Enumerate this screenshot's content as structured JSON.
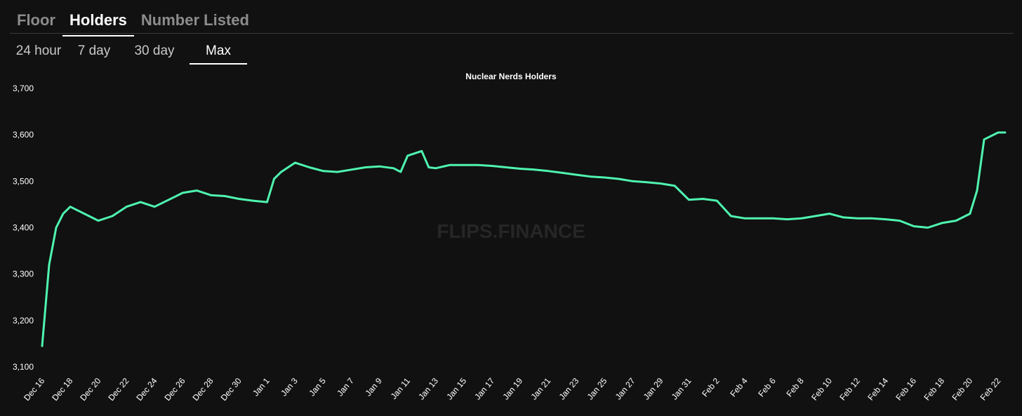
{
  "tabs": [
    {
      "label": "Floor",
      "active": false
    },
    {
      "label": "Holders",
      "active": true
    },
    {
      "label": "Number Listed",
      "active": false
    }
  ],
  "ranges": [
    {
      "label": "24 hour",
      "active": false
    },
    {
      "label": "7 day",
      "active": false
    },
    {
      "label": "30 day",
      "active": false
    },
    {
      "label": "Max",
      "active": true
    }
  ],
  "watermark": "FLIPS.FINANCE",
  "colors": {
    "background": "#111111",
    "line": "#4ff5b0",
    "text": "#ffffff",
    "watermark": "#262626"
  },
  "chart_data": {
    "type": "line",
    "title": "Nuclear Nerds Holders",
    "xlabel": "",
    "ylabel": "",
    "ylim": [
      3100,
      3700
    ],
    "grid": false,
    "legend": "none",
    "yticks": [
      3100,
      3200,
      3300,
      3400,
      3500,
      3600,
      3700
    ],
    "ytick_labels": [
      "3,100",
      "3,200",
      "3,300",
      "3,400",
      "3,500",
      "3,600",
      "3,700"
    ],
    "xticks": [
      "Dec 16",
      "Dec 18",
      "Dec 20",
      "Dec 22",
      "Dec 24",
      "Dec 26",
      "Dec 28",
      "Dec 30",
      "Jan 1",
      "Jan 3",
      "Jan 5",
      "Jan 7",
      "Jan 9",
      "Jan 11",
      "Jan 13",
      "Jan 15",
      "Jan 17",
      "Jan 19",
      "Jan 21",
      "Jan 23",
      "Jan 25",
      "Jan 27",
      "Jan 29",
      "Jan 31",
      "Feb 2",
      "Feb 4",
      "Feb 6",
      "Feb 8",
      "Feb 10",
      "Feb 12",
      "Feb 14",
      "Feb 16",
      "Feb 18",
      "Feb 20",
      "Feb 22"
    ],
    "series": [
      {
        "x": [
          "Dec 16",
          "Dec 16 12h",
          "Dec 17",
          "Dec 17 12h",
          "Dec 18",
          "Dec 19",
          "Dec 20",
          "Dec 21",
          "Dec 22",
          "Dec 23",
          "Dec 24",
          "Dec 25",
          "Dec 26",
          "Dec 27",
          "Dec 28",
          "Dec 29",
          "Dec 30",
          "Dec 31",
          "Jan 1",
          "Jan 1 12h",
          "Jan 2",
          "Jan 3",
          "Jan 4",
          "Jan 5",
          "Jan 6",
          "Jan 7",
          "Jan 8",
          "Jan 9",
          "Jan 10",
          "Jan 10 12h",
          "Jan 11",
          "Jan 12",
          "Jan 12 12h",
          "Jan 13",
          "Jan 14",
          "Jan 15",
          "Jan 16",
          "Jan 17",
          "Jan 18",
          "Jan 19",
          "Jan 20",
          "Jan 21",
          "Jan 22",
          "Jan 23",
          "Jan 24",
          "Jan 25",
          "Jan 26",
          "Jan 27",
          "Jan 28",
          "Jan 29",
          "Jan 30",
          "Jan 31",
          "Feb 1",
          "Feb 2",
          "Feb 3",
          "Feb 4",
          "Feb 5",
          "Feb 6",
          "Feb 7",
          "Feb 8",
          "Feb 9",
          "Feb 10",
          "Feb 11",
          "Feb 12",
          "Feb 13",
          "Feb 14",
          "Feb 15",
          "Feb 16",
          "Feb 17",
          "Feb 18",
          "Feb 19",
          "Feb 20",
          "Feb 20 12h",
          "Feb 21",
          "Feb 22",
          "Feb 22 12h"
        ],
        "values": [
          3145,
          3320,
          3400,
          3430,
          3445,
          3430,
          3415,
          3425,
          3445,
          3455,
          3445,
          3460,
          3475,
          3480,
          3470,
          3468,
          3462,
          3458,
          3455,
          3505,
          3520,
          3540,
          3530,
          3522,
          3520,
          3525,
          3530,
          3532,
          3528,
          3520,
          3555,
          3565,
          3530,
          3528,
          3535,
          3535,
          3535,
          3533,
          3530,
          3527,
          3525,
          3522,
          3518,
          3514,
          3510,
          3508,
          3505,
          3500,
          3498,
          3495,
          3490,
          3460,
          3462,
          3458,
          3425,
          3420,
          3420,
          3420,
          3418,
          3420,
          3425,
          3430,
          3422,
          3420,
          3420,
          3418,
          3415,
          3403,
          3400,
          3410,
          3415,
          3430,
          3480,
          3590,
          3605,
          3605
        ]
      }
    ]
  }
}
